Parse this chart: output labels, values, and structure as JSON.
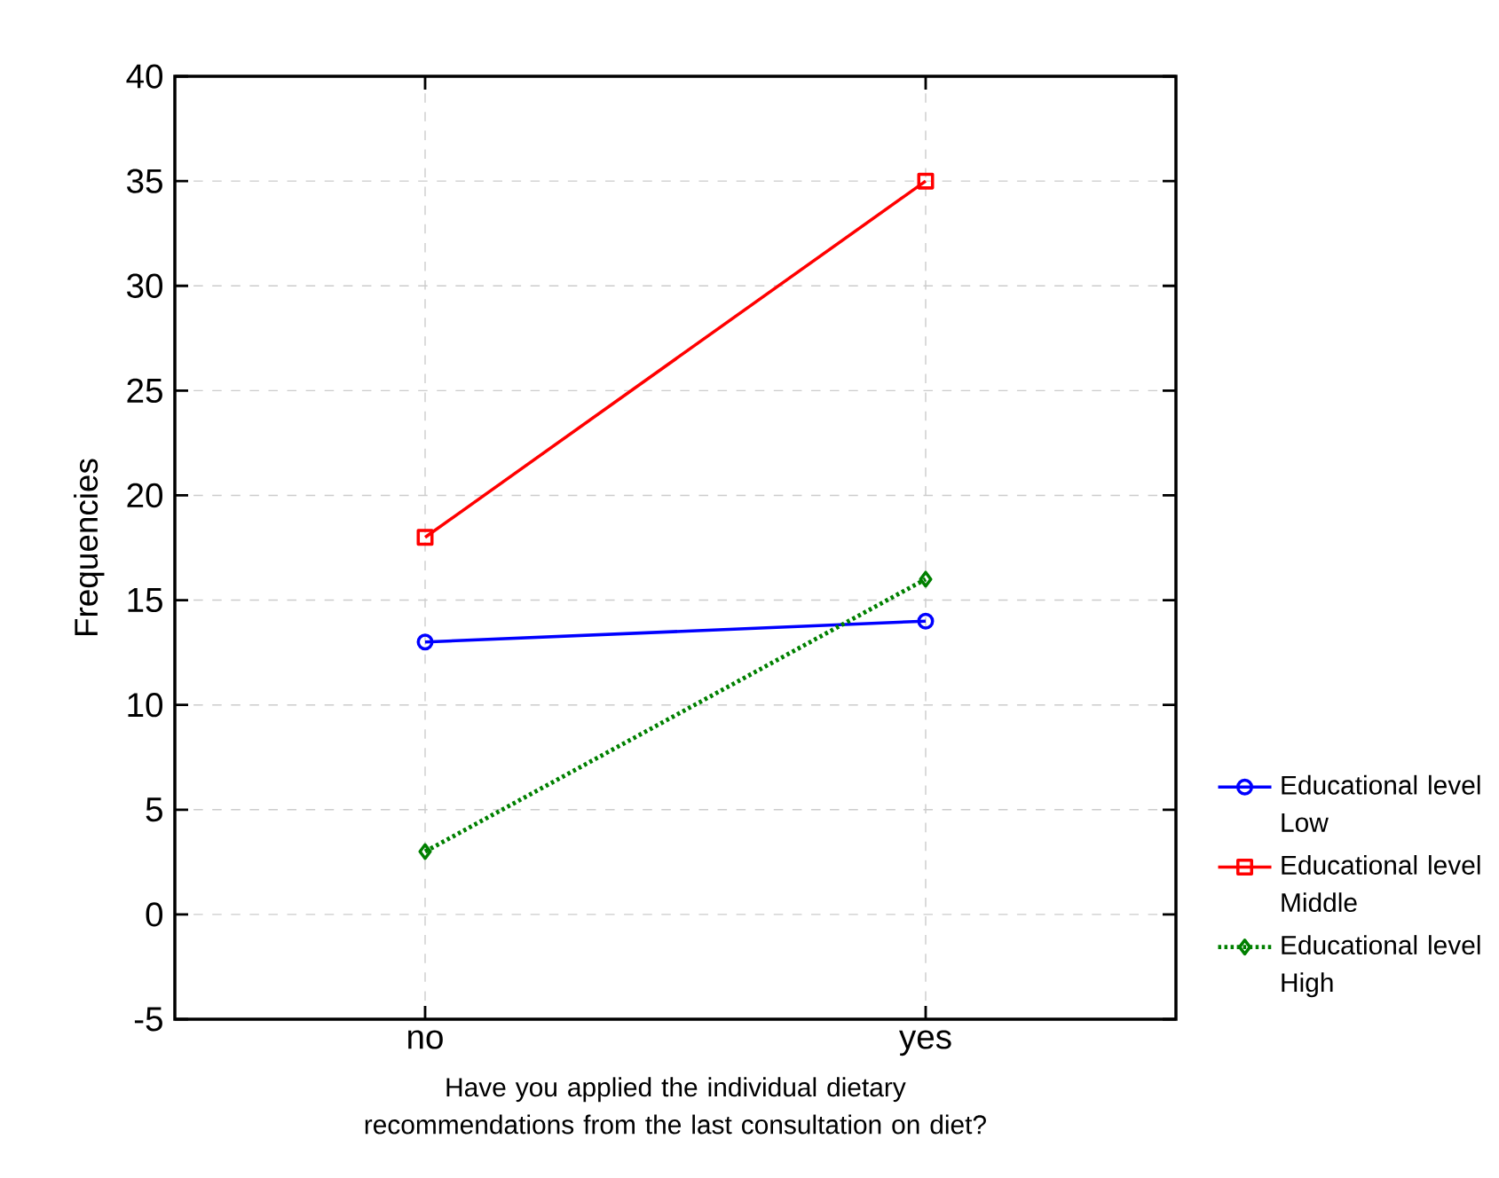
{
  "chart_data": {
    "type": "line",
    "xlabel": "Have you applied the individual dietary recommendations from the last consultation on diet?",
    "ylabel": "Frequencies",
    "categories": [
      "no",
      "yes"
    ],
    "series": [
      {
        "name": "Educational level Low",
        "color": "#0000ff",
        "values": [
          13,
          14
        ],
        "marker": "circle",
        "line_style": "solid"
      },
      {
        "name": "Educational level Middle",
        "color": "#ff0000",
        "values": [
          18,
          35
        ],
        "marker": "square",
        "line_style": "solid"
      },
      {
        "name": "Educational level High",
        "color": "#008000",
        "values": [
          3,
          16
        ],
        "marker": "diamond",
        "line_style": "dotted"
      }
    ],
    "ylim": [
      -5,
      40
    ],
    "yticks": [
      -5,
      0,
      5,
      10,
      15,
      20,
      25,
      30,
      35,
      40
    ],
    "grid": true,
    "legend": "right"
  }
}
